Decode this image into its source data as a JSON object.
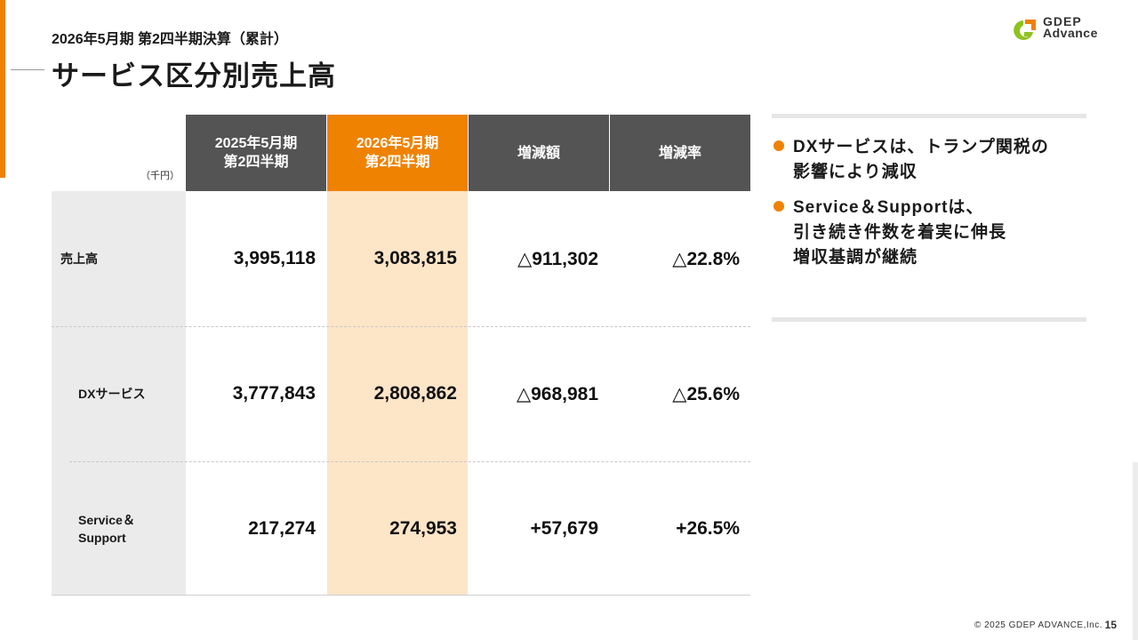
{
  "header": {
    "subtitle": "2026年5月期 第2四半期決算（累計）",
    "title": "サービス区分別売上高"
  },
  "logo": {
    "line1": "GDEP",
    "line2": "Advance",
    "colors": {
      "green": "#8dc21f",
      "orange": "#ef8200"
    }
  },
  "table": {
    "unit": "（千円）",
    "columns": [
      {
        "line1": "2025年5月期",
        "line2": "第2四半期"
      },
      {
        "line1": "2026年5月期",
        "line2": "第2四半期"
      },
      {
        "line1": "増減額",
        "line2": ""
      },
      {
        "line1": "増減率",
        "line2": ""
      }
    ],
    "rows": [
      {
        "label": "売上高",
        "values": [
          "3,995,118",
          "3,083,815",
          "△911,302",
          "△22.8%"
        ]
      },
      {
        "label": "DXサービス",
        "values": [
          "3,777,843",
          "2,808,862",
          "△968,981",
          "△25.6%"
        ]
      },
      {
        "label_line1": "Service＆",
        "label_line2": "Support",
        "values": [
          "217,274",
          "274,953",
          "+57,679",
          "+26.5%"
        ]
      }
    ]
  },
  "bullets": [
    {
      "lines": [
        "DXサービスは、トランプ関税の",
        "影響により減収"
      ]
    },
    {
      "lines": [
        "Service＆Supportは、",
        "引き続き件数を着実に伸長",
        "増収基調が継続"
      ]
    }
  ],
  "footer": {
    "copyright": "© 2025 GDEP ADVANCE,Inc.",
    "page": "15"
  },
  "colors": {
    "accent": "#ef8200",
    "header_gray": "#545454",
    "highlight_col": "#fde5c7",
    "label_col": "#ebebeb"
  }
}
